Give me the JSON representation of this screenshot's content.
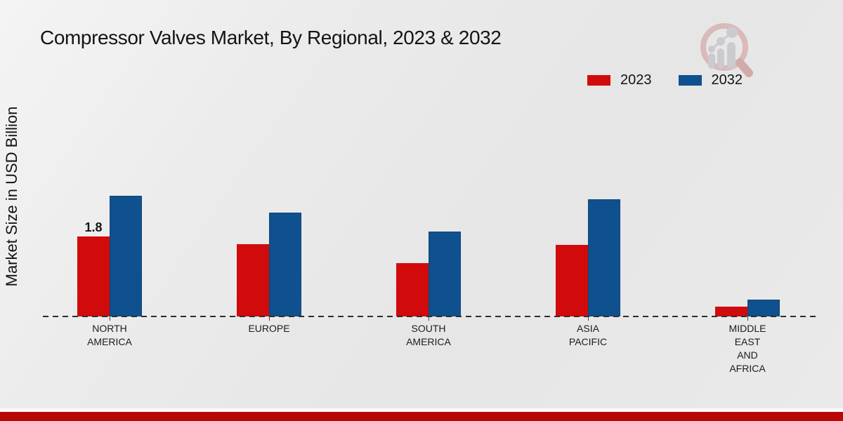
{
  "chart_data": {
    "type": "bar",
    "title": "Compressor Valves Market, By Regional, 2023 & 2032",
    "xlabel": "",
    "ylabel": "Market Size in USD Billion",
    "ylim": [
      0,
      3
    ],
    "grid": false,
    "legend_position": "top-right",
    "categories": [
      "NORTH AMERICA",
      "EUROPE",
      "SOUTH AMERICA",
      "ASIA PACIFIC",
      "MIDDLE EAST AND AFRICA"
    ],
    "category_label_lines": [
      [
        "NORTH",
        "AMERICA"
      ],
      [
        "EUROPE"
      ],
      [
        "SOUTH",
        "AMERICA"
      ],
      [
        "ASIA",
        "PACIFIC"
      ],
      [
        "MIDDLE",
        "EAST",
        "AND",
        "AFRICA"
      ]
    ],
    "series": [
      {
        "name": "2023",
        "color": "#d10b0b",
        "values": [
          1.8,
          1.63,
          1.2,
          1.61,
          0.22
        ]
      },
      {
        "name": "2032",
        "color": "#0f518e",
        "values": [
          2.72,
          2.34,
          1.91,
          2.64,
          0.38
        ]
      }
    ],
    "bar_labels": [
      {
        "category_index": 0,
        "series_index": 0,
        "text": "1.8"
      }
    ]
  },
  "icons": {
    "logo": "magnifier-bar-chart-watermark"
  },
  "colors": {
    "background": "#e9e9e9",
    "footer_bar": "#b70707",
    "axis_line": "#2e2e2e"
  }
}
